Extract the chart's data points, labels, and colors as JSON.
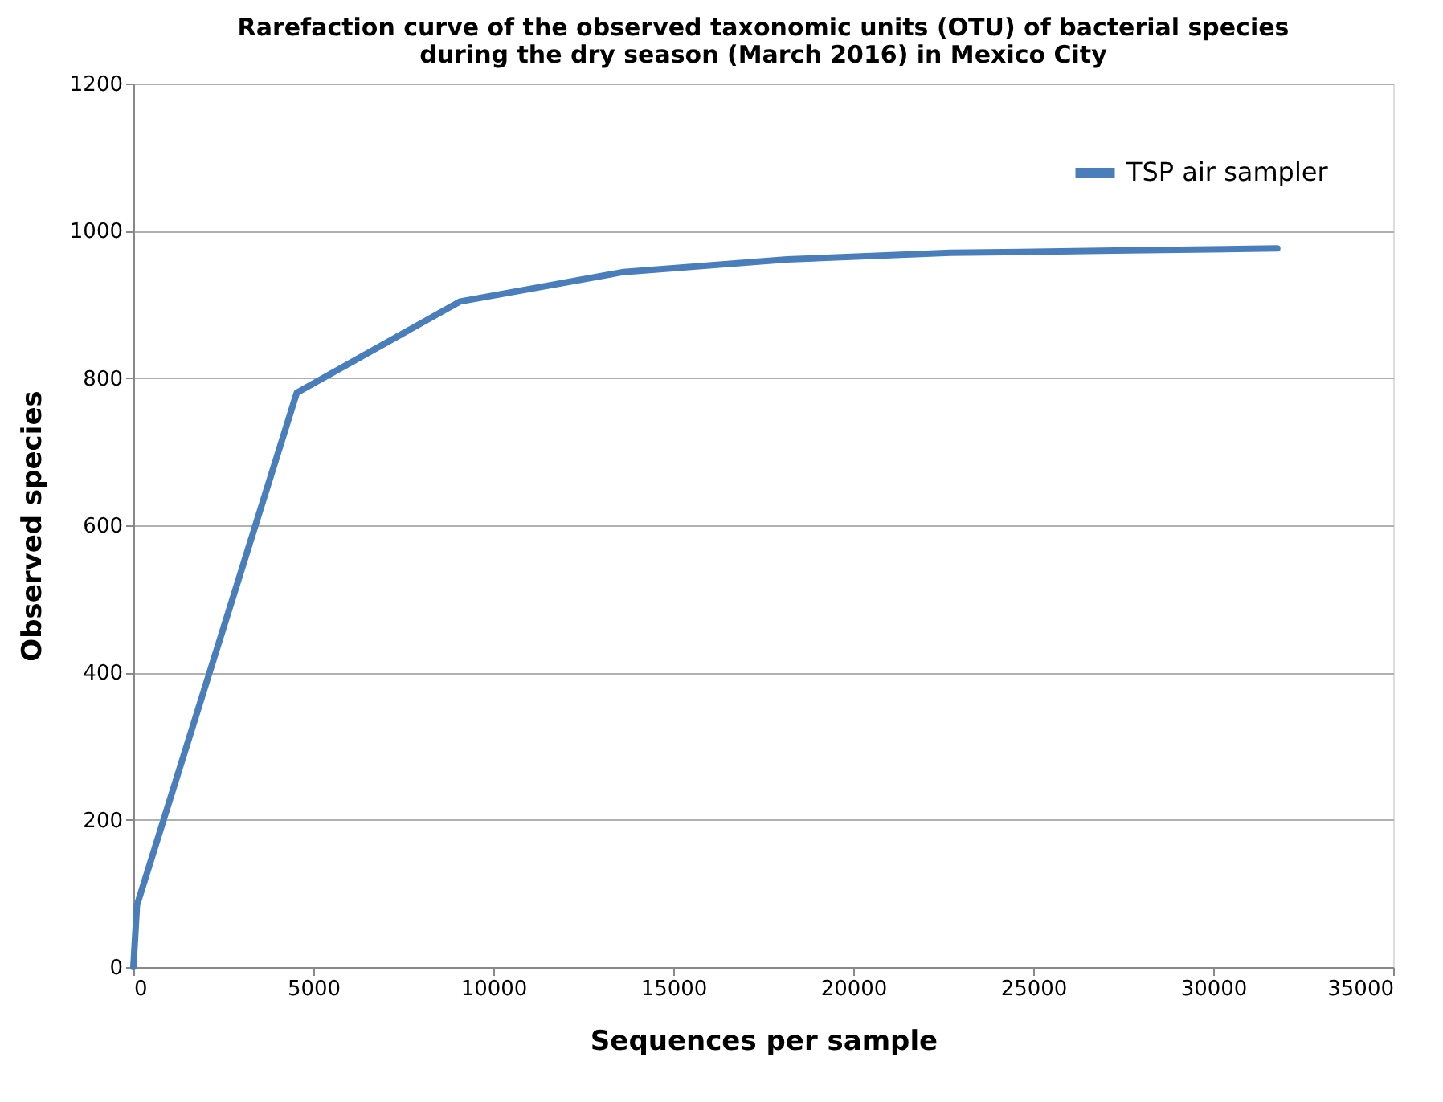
{
  "chart_data": {
    "type": "line",
    "title": [
      "Rarefaction curve of the observed taxonomic units (OTU) of bacterial species",
      "during the dry season (March 2016) in Mexico City"
    ],
    "xlabel": "Sequences per sample",
    "ylabel": "Observed species",
    "x": [
      0,
      100,
      4540,
      9080,
      13620,
      18160,
      22700,
      27240,
      31780
    ],
    "series": [
      {
        "name": "TSP air sampler",
        "color": "#4a7ebb",
        "values": [
          0,
          84,
          780,
          904,
          944,
          961,
          970,
          973,
          976
        ]
      }
    ],
    "xlim": [
      0,
      35000
    ],
    "xticks": [
      0,
      5000,
      10000,
      15000,
      20000,
      25000,
      30000,
      35000
    ],
    "ylim": [
      0,
      1200
    ],
    "yticks": [
      0,
      200,
      400,
      600,
      800,
      1000,
      1200
    ],
    "grid": "y",
    "legend": "top right",
    "marker": "none",
    "line_style": "solid"
  }
}
